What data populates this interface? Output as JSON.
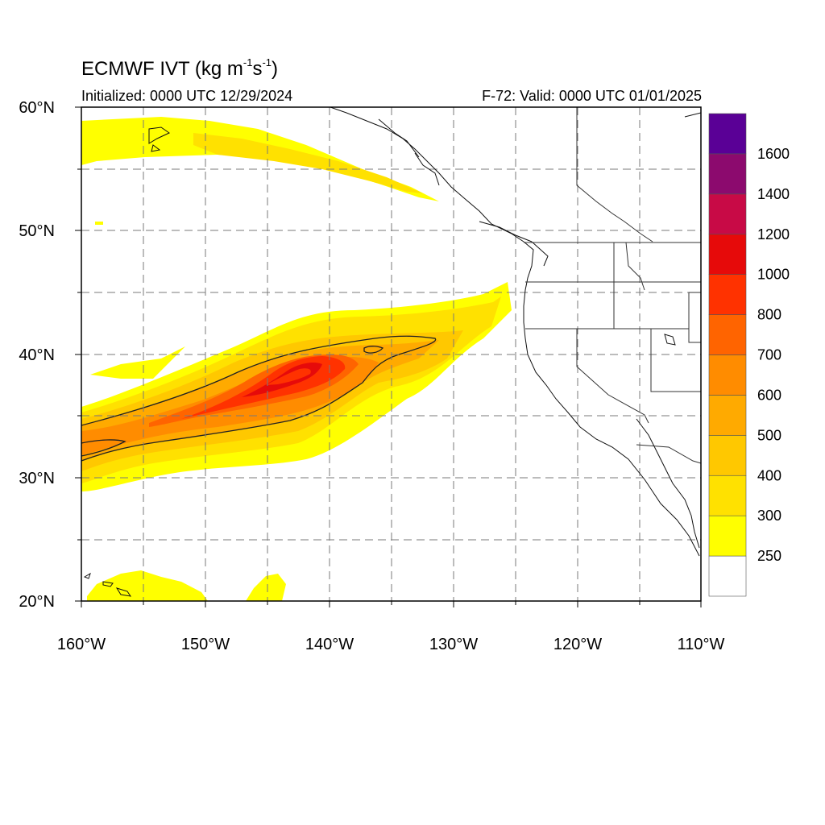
{
  "title": {
    "main": "ECMWF IVT (kg m",
    "exp1": "-1",
    "mid": "s",
    "exp2": "-1",
    "close": ")"
  },
  "subtitle": {
    "initialized": "Initialized: 0000 UTC 12/29/2024",
    "valid": "F-72: Valid: 0000 UTC 01/01/2025"
  },
  "map": {
    "lon_range": [
      -160,
      -110
    ],
    "lat_range": [
      20,
      60
    ],
    "lat_labels": [
      "60°N",
      "50°N",
      "40°N",
      "30°N",
      "20°N"
    ],
    "lon_labels": [
      "160°W",
      "150°W",
      "140°W",
      "130°W",
      "120°W",
      "110°W"
    ],
    "grid_spacing_deg": 5,
    "grid_style": "dashed gray",
    "contour_lines": "black outlines at 250 and 500"
  },
  "colorbar": {
    "levels": [
      "250",
      "300",
      "400",
      "500",
      "600",
      "700",
      "800",
      "1000",
      "1200",
      "1400",
      "1600"
    ],
    "colors": [
      "#ffffff",
      "#ffff00",
      "#ffe100",
      "#ffc800",
      "#ffaa00",
      "#ff8c00",
      "#ff6400",
      "#ff3200",
      "#e60a0a",
      "#c80a46",
      "#8c0a6e",
      "#5a0096"
    ]
  }
}
